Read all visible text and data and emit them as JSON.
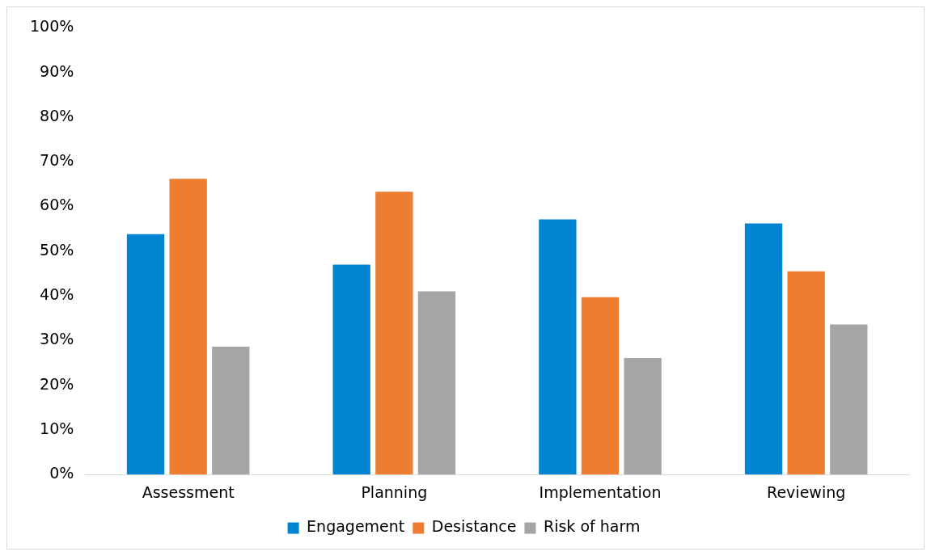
{
  "chart_data": {
    "type": "bar",
    "categories": [
      "Assessment",
      "Planning",
      "Implementation",
      "Reviewing"
    ],
    "series": [
      {
        "name": "Engagement",
        "color": "#0084d1",
        "values": [
          53.8,
          47.0,
          57.1,
          56.2
        ]
      },
      {
        "name": "Desistance",
        "color": "#ed7d31",
        "values": [
          66.2,
          63.3,
          39.7,
          45.5
        ]
      },
      {
        "name": "Risk of harm",
        "color": "#a5a5a5",
        "values": [
          28.6,
          41.0,
          26.1,
          33.6
        ]
      }
    ],
    "ylim": [
      0,
      100
    ],
    "yticks": [
      {
        "value": 0,
        "label": "0%"
      },
      {
        "value": 10,
        "label": "10%"
      },
      {
        "value": 20,
        "label": "20%"
      },
      {
        "value": 30,
        "label": "30%"
      },
      {
        "value": 40,
        "label": "40%"
      },
      {
        "value": 50,
        "label": "50%"
      },
      {
        "value": 60,
        "label": "60%"
      },
      {
        "value": 70,
        "label": "70%"
      },
      {
        "value": 80,
        "label": "80%"
      },
      {
        "value": 90,
        "label": "90%"
      },
      {
        "value": 100,
        "label": "100%"
      }
    ],
    "grid": false,
    "legend": "bottom"
  }
}
